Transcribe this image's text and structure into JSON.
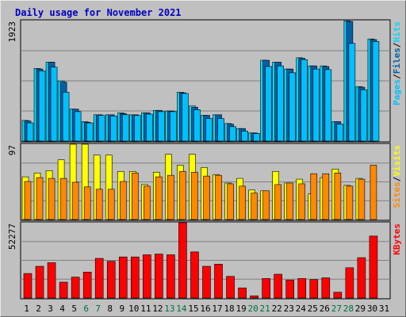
{
  "title": "Daily usage for November 2021",
  "colors": {
    "background": "#c0c0c0",
    "hits": "#00d8ff",
    "files": "#0060a8",
    "pages": "#00c0ff",
    "visits": "#ffff00",
    "sites": "#ff8800",
    "kbytes": "#ff0000",
    "weekend_label": "#007040",
    "title": "#0000c0"
  },
  "chart_data": {
    "type": "bar",
    "title": "Daily usage for November 2021",
    "categories": [
      "1",
      "2",
      "3",
      "4",
      "5",
      "6",
      "7",
      "8",
      "9",
      "10",
      "11",
      "12",
      "13",
      "14",
      "15",
      "16",
      "17",
      "18",
      "19",
      "20",
      "21",
      "22",
      "23",
      "24",
      "25",
      "26",
      "27",
      "28",
      "29",
      "30",
      "31"
    ],
    "weekend_days": [
      "6",
      "7",
      "13",
      "14",
      "20",
      "21",
      "27",
      "28"
    ],
    "panels": [
      {
        "name": "hits-files-pages",
        "max_label": "1923",
        "ymax": 1923,
        "legend": [
          "Pages",
          "/",
          "Files",
          "/",
          "Hits"
        ],
        "series": [
          {
            "name": "Hits",
            "values": [
              330,
              1160,
              1260,
              960,
              510,
              310,
              420,
              420,
              450,
              420,
              450,
              490,
              480,
              780,
              560,
              410,
              420,
              280,
              200,
              130,
              1290,
              1260,
              1150,
              1330,
              1200,
              1200,
              310,
              1920,
              870,
              1630,
              0
            ]
          },
          {
            "name": "Files",
            "values": [
              320,
              1150,
              1260,
              940,
              510,
              300,
              420,
              420,
              440,
              420,
              450,
              490,
              480,
              770,
              540,
              410,
              420,
              270,
              200,
              130,
              1290,
              1260,
              1150,
              1320,
              1200,
              1190,
              310,
              1910,
              860,
              1620,
              0
            ]
          },
          {
            "name": "Pages",
            "values": [
              290,
              1120,
              1180,
              780,
              470,
              290,
              410,
              400,
              420,
              410,
              430,
              470,
              470,
              760,
              500,
              360,
              360,
              230,
              160,
              120,
              1190,
              1200,
              1090,
              1300,
              1150,
              1140,
              270,
              1560,
              820,
              1590,
              0
            ]
          }
        ]
      },
      {
        "name": "visits-sites",
        "max_label": "97",
        "ymax": 97,
        "legend": [
          "Sites",
          "/",
          "Visits"
        ],
        "series": [
          {
            "name": "Visits",
            "values": [
              55,
              60,
              63,
              77,
              97,
              97,
              83,
              83,
              62,
              62,
              45,
              61,
              84,
              70,
              84,
              67,
              58,
              47,
              53,
              38,
              37,
              62,
              47,
              52,
              33,
              54,
              65,
              44,
              53,
              0,
              0
            ]
          },
          {
            "name": "Sites",
            "values": [
              49,
              54,
              53,
              53,
              48,
              42,
              39,
              39,
              49,
              60,
              43,
              55,
              57,
              62,
              61,
              56,
              57,
              46,
              43,
              34,
              37,
              45,
              47,
              46,
              59,
              59,
              60,
              43,
              52,
              70,
              0
            ]
          }
        ]
      },
      {
        "name": "kbytes",
        "max_label": "52277",
        "ymax": 52277,
        "legend": [
          "KBytes"
        ],
        "series": [
          {
            "name": "KBytes",
            "values": [
              17000,
              22000,
              24500,
              11000,
              14500,
              18000,
              27500,
              25500,
              28500,
              28500,
              30000,
              30500,
              30000,
              52277,
              32000,
              22000,
              23500,
              15000,
              7000,
              1500,
              13500,
              16500,
              12500,
              13500,
              12800,
              14000,
              4000,
              21000,
              28000,
              43000,
              0
            ]
          }
        ]
      }
    ]
  }
}
